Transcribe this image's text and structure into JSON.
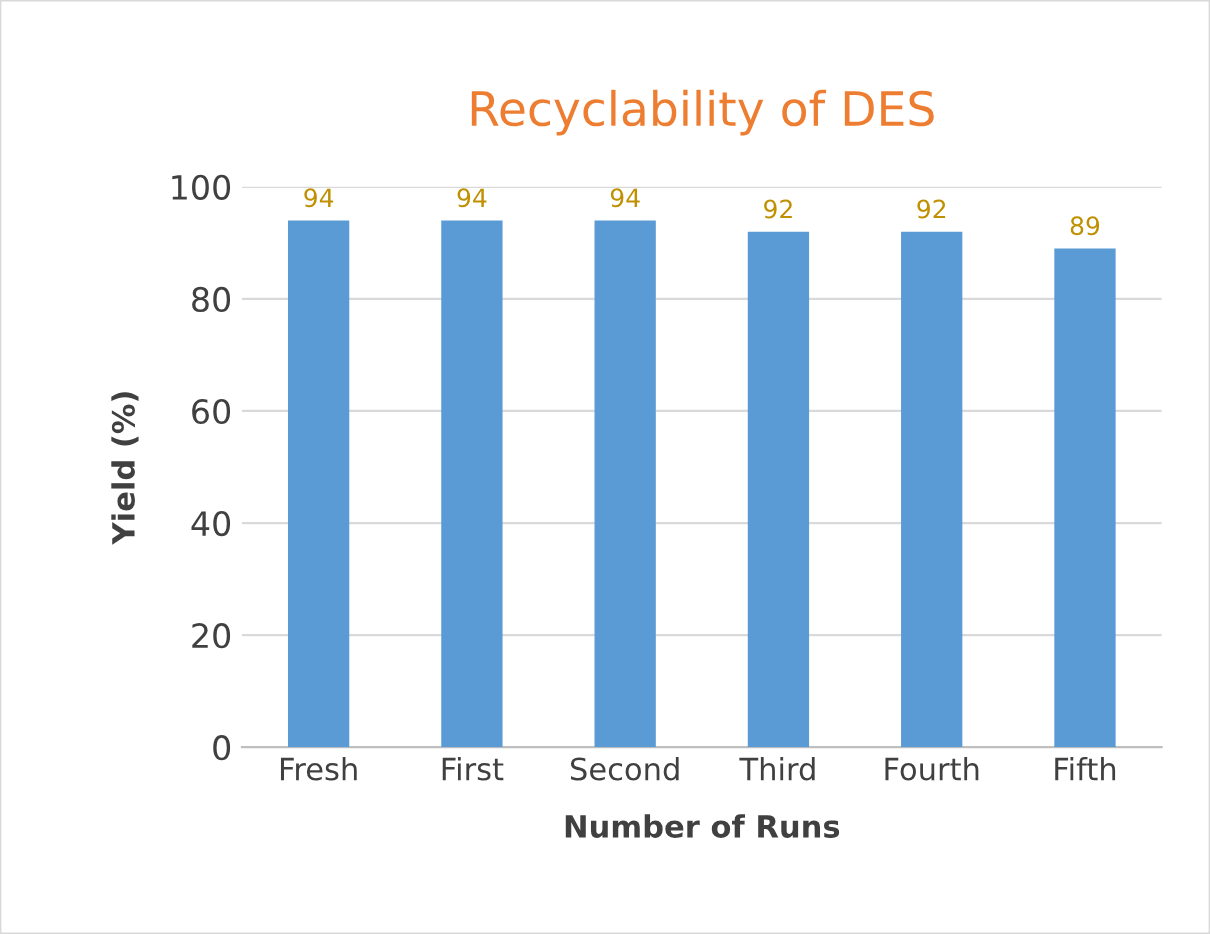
{
  "chart_data": {
    "type": "bar",
    "title": "Recyclability of DES",
    "xlabel": "Number of Runs",
    "ylabel": "Yield (%)",
    "categories": [
      "Fresh",
      "First",
      "Second",
      "Third",
      "Fourth",
      "Fifth"
    ],
    "values": [
      94,
      94,
      94,
      92,
      92,
      89
    ],
    "color": "#5b9bd5",
    "ylim": [
      0,
      100
    ],
    "yticks": [
      0,
      20,
      40,
      60,
      80,
      100
    ],
    "grid": "y",
    "data_labels": true
  }
}
